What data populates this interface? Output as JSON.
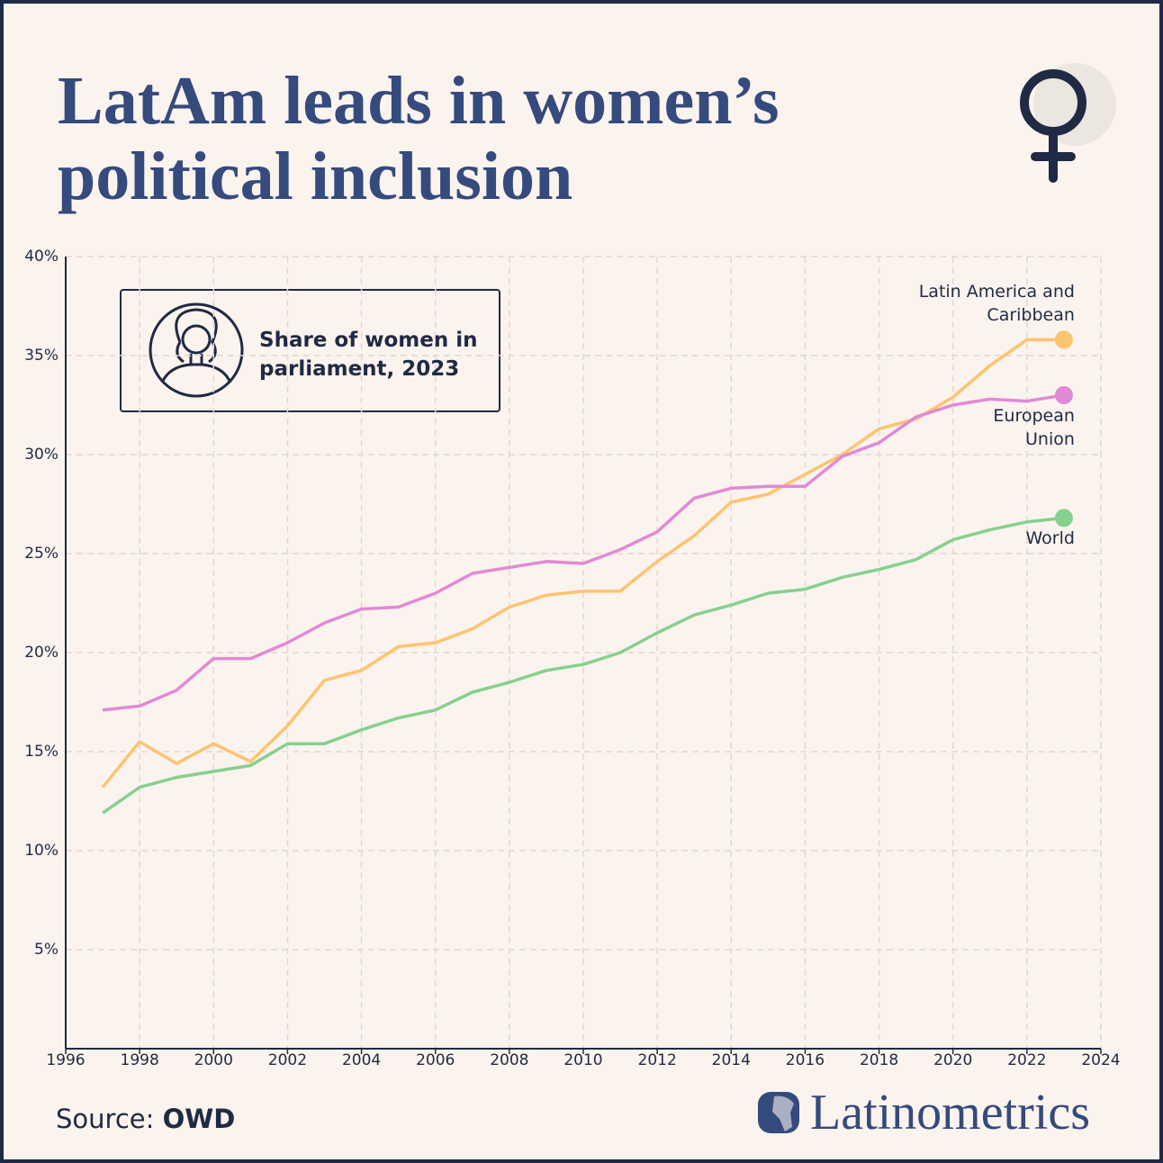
{
  "chart_data": {
    "type": "line",
    "title": "LatAm leads in women’s political inclusion",
    "subtitle": "Share of women in parliament, 2023",
    "x": [
      1997,
      1998,
      1999,
      2000,
      2001,
      2002,
      2003,
      2004,
      2005,
      2006,
      2007,
      2008,
      2009,
      2010,
      2011,
      2012,
      2013,
      2014,
      2015,
      2016,
      2017,
      2018,
      2019,
      2020,
      2021,
      2022,
      2023
    ],
    "series": [
      {
        "name": "Latin America and Caribbean",
        "color": "#fcc46f",
        "values": [
          13.2,
          15.5,
          14.4,
          15.4,
          14.5,
          16.3,
          18.6,
          19.1,
          20.3,
          20.5,
          21.2,
          22.3,
          22.9,
          23.1,
          23.1,
          24.6,
          25.9,
          27.6,
          28.0,
          29.0,
          30.0,
          31.3,
          31.8,
          32.9,
          34.5,
          35.8,
          35.8
        ]
      },
      {
        "name": "European Union",
        "color": "#e08ad6",
        "values": [
          17.1,
          17.3,
          18.1,
          19.7,
          19.7,
          20.5,
          21.5,
          22.2,
          22.3,
          23.0,
          24.0,
          24.3,
          24.6,
          24.5,
          25.2,
          26.1,
          27.8,
          28.3,
          28.4,
          28.4,
          29.9,
          30.6,
          31.9,
          32.5,
          32.8,
          32.7,
          33.0
        ]
      },
      {
        "name": "World",
        "color": "#86d08f",
        "values": [
          11.9,
          13.2,
          13.7,
          14.0,
          14.3,
          15.4,
          15.4,
          16.1,
          16.7,
          17.1,
          18.0,
          18.5,
          19.1,
          19.4,
          20.0,
          21.0,
          21.9,
          22.4,
          23.0,
          23.2,
          23.8,
          24.2,
          24.7,
          25.7,
          26.2,
          26.6,
          26.8
        ]
      }
    ],
    "xlim": [
      1996,
      2024
    ],
    "xticks": [
      1996,
      1998,
      2000,
      2002,
      2004,
      2006,
      2008,
      2010,
      2012,
      2014,
      2016,
      2018,
      2020,
      2022,
      2024
    ],
    "ylim": [
      0,
      40
    ],
    "yticks": [
      {
        "value": 5,
        "label": "5%"
      },
      {
        "value": 10,
        "label": "10%"
      },
      {
        "value": 15,
        "label": "15%"
      },
      {
        "value": 20,
        "label": "20%"
      },
      {
        "value": 25,
        "label": "25%"
      },
      {
        "value": 30,
        "label": "30%"
      },
      {
        "value": 35,
        "label": "35%"
      },
      {
        "value": 40,
        "label": "40%"
      }
    ],
    "grid": true,
    "source_label": "Source:",
    "source": "OWD",
    "brand": "Latinometrics"
  }
}
